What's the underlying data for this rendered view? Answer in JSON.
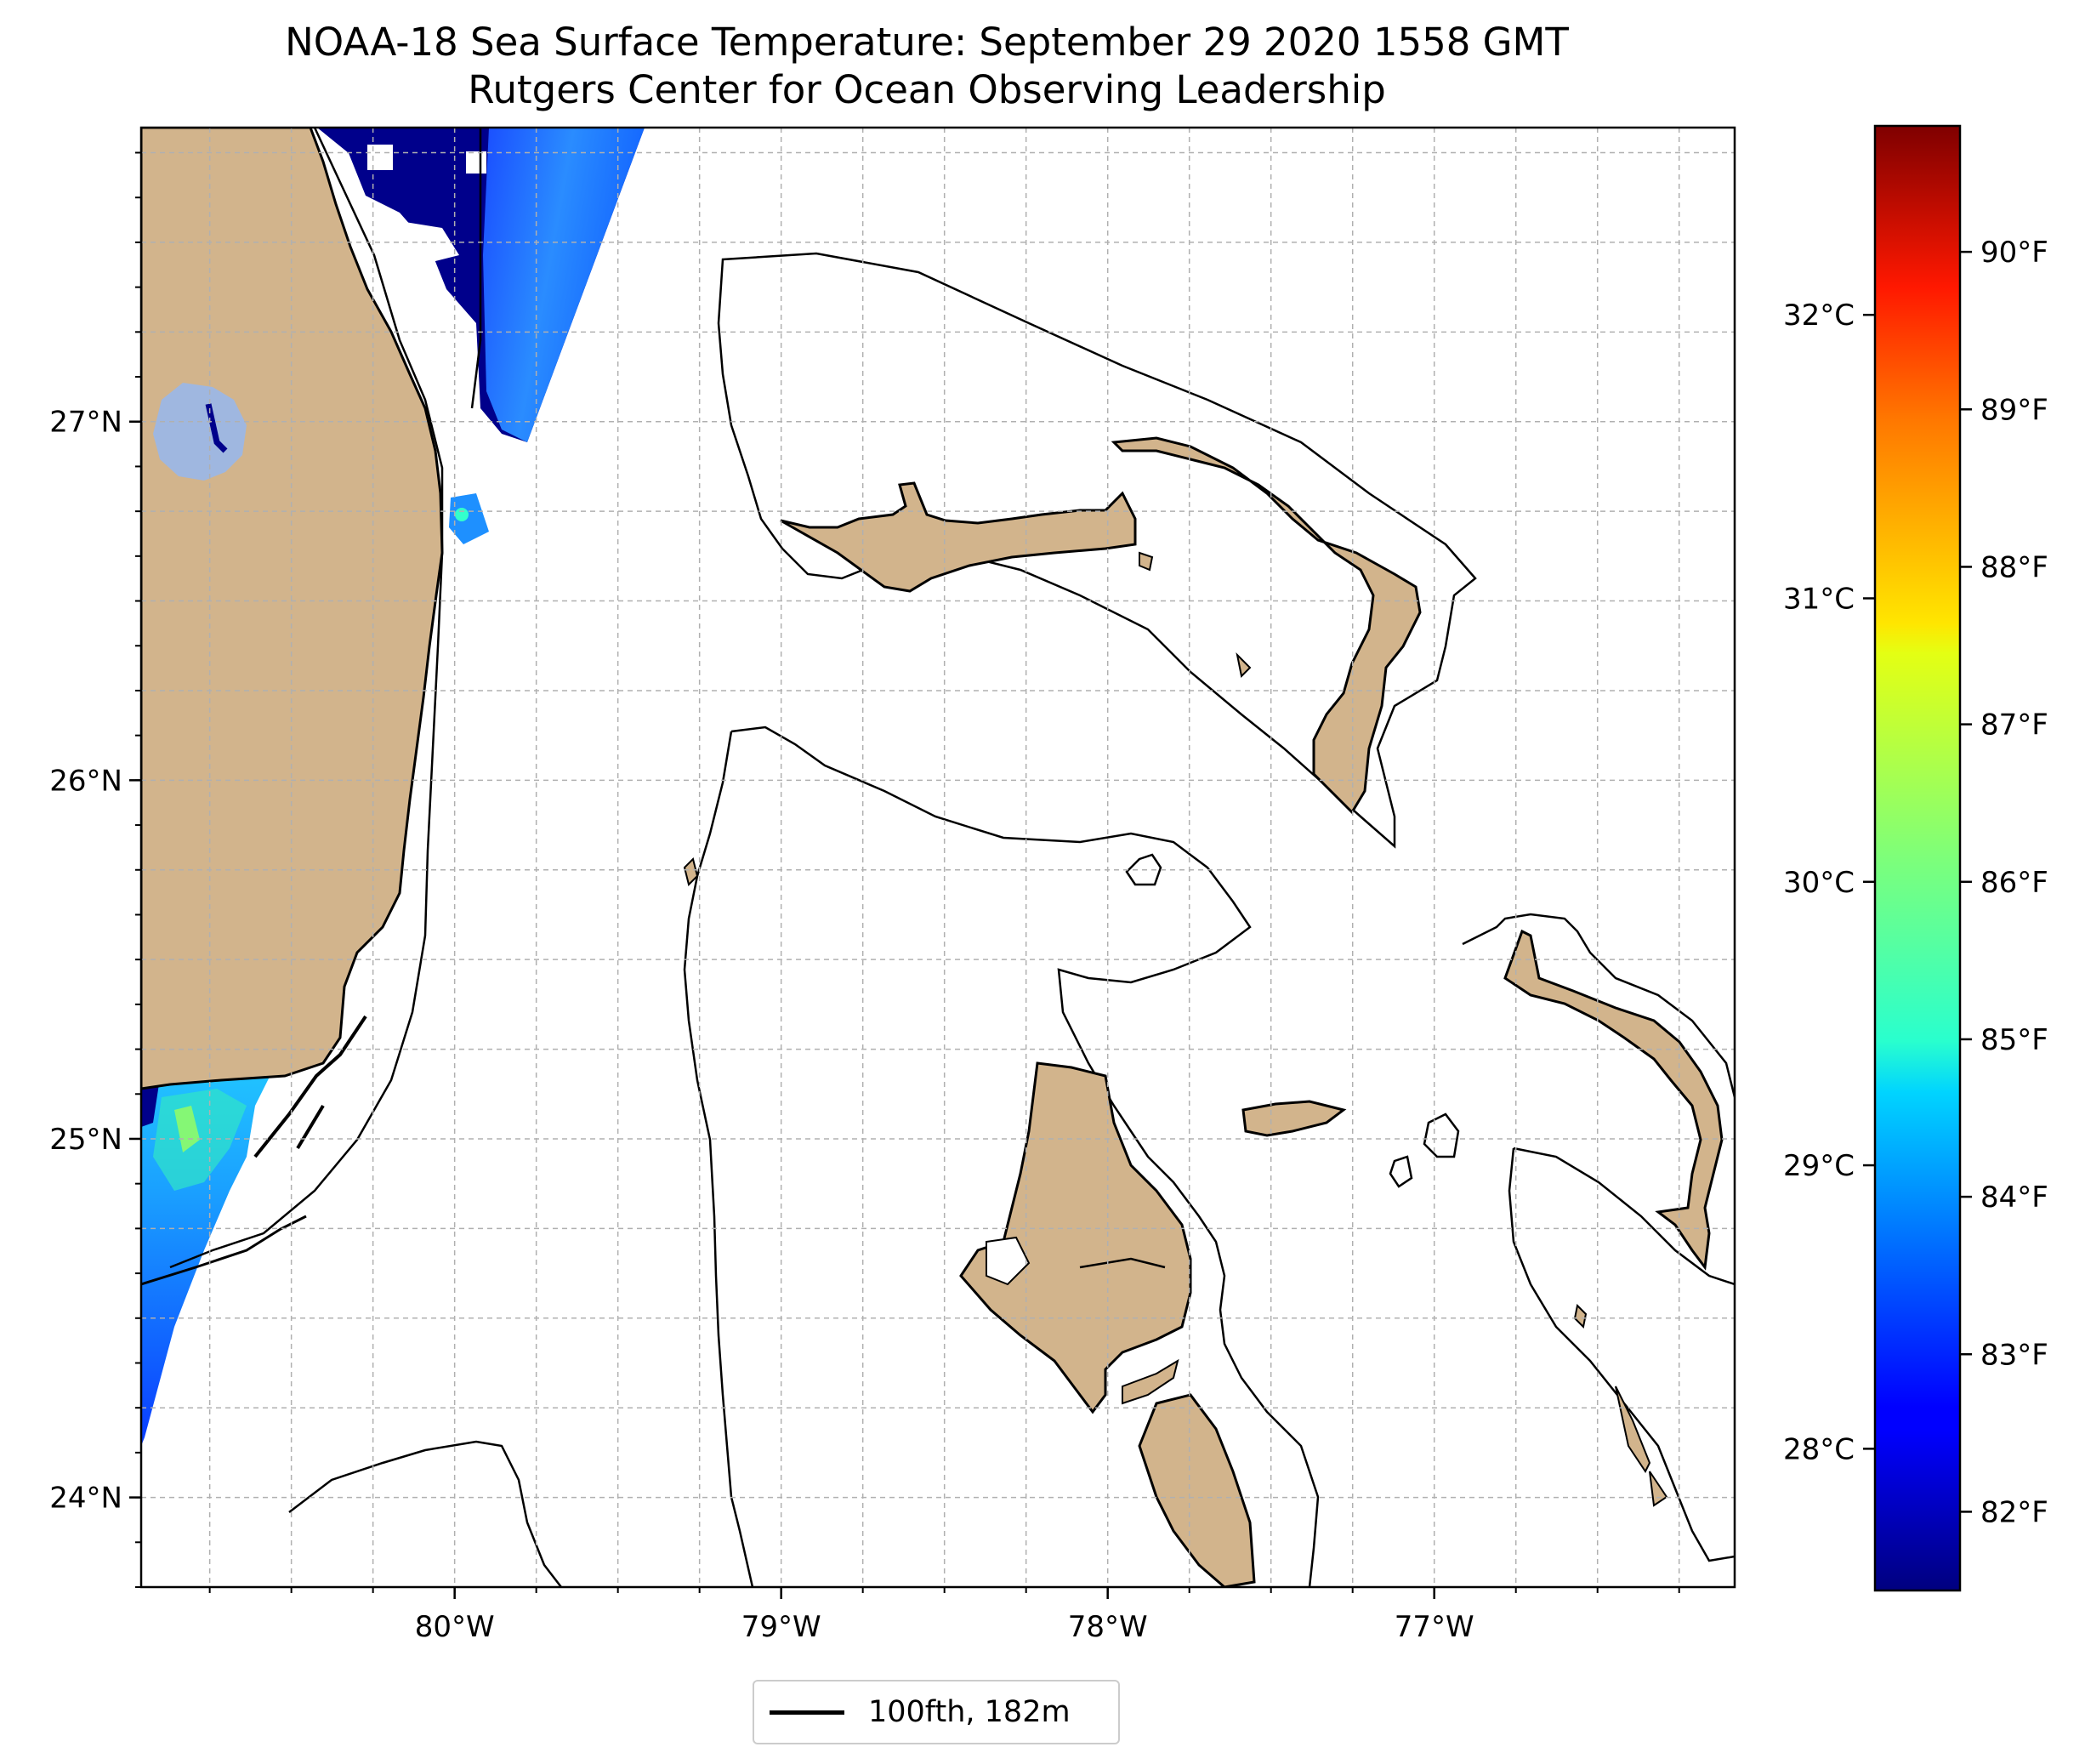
{
  "title": {
    "line1": "NOAA-18 Sea Surface Temperature: September 29 2020 1558 GMT",
    "line2": "Rutgers Center for Ocean Observing Leadership"
  },
  "map": {
    "lon_range": [
      -80.96,
      -76.08
    ],
    "lat_range": [
      23.75,
      27.82
    ],
    "land_color": "#d2b48c",
    "lake_color": "#9fb7e0",
    "grid": "dashed, every 0.25 degree",
    "lon_ticks": [
      {
        "value": -80,
        "label": "80°W"
      },
      {
        "value": -79,
        "label": "79°W"
      },
      {
        "value": -78,
        "label": "78°W"
      },
      {
        "value": -77,
        "label": "77°W"
      }
    ],
    "lat_ticks": [
      {
        "value": 24,
        "label": "24°N"
      },
      {
        "value": 25,
        "label": "25°N"
      },
      {
        "value": 26,
        "label": "26°N"
      },
      {
        "value": 27,
        "label": "27°N"
      }
    ]
  },
  "colorbar": {
    "colormap": "jet",
    "range_f": [
      81.5,
      90.8
    ],
    "celsius_ticks": [
      {
        "value": 28,
        "label": "28°C"
      },
      {
        "value": 29,
        "label": "29°C"
      },
      {
        "value": 30,
        "label": "30°C"
      },
      {
        "value": 31,
        "label": "31°C"
      },
      {
        "value": 32,
        "label": "32°C"
      }
    ],
    "fahrenheit_ticks": [
      {
        "value": 82,
        "label": "82°F"
      },
      {
        "value": 83,
        "label": "83°F"
      },
      {
        "value": 84,
        "label": "84°F"
      },
      {
        "value": 85,
        "label": "85°F"
      },
      {
        "value": 86,
        "label": "86°F"
      },
      {
        "value": 87,
        "label": "87°F"
      },
      {
        "value": 88,
        "label": "88°F"
      },
      {
        "value": 89,
        "label": "89°F"
      },
      {
        "value": 90,
        "label": "90°F"
      }
    ]
  },
  "legend": {
    "label": "100fth, 182m"
  }
}
